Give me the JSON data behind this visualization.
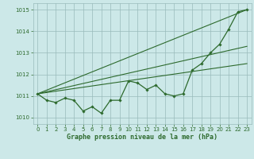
{
  "x": [
    0,
    1,
    2,
    3,
    4,
    5,
    6,
    7,
    8,
    9,
    10,
    11,
    12,
    13,
    14,
    15,
    16,
    17,
    18,
    19,
    20,
    21,
    22,
    23
  ],
  "pressure": [
    1011.1,
    1010.8,
    1010.7,
    1010.9,
    1010.8,
    1010.3,
    1010.5,
    1010.2,
    1010.8,
    1010.8,
    1011.7,
    1011.6,
    1011.3,
    1011.5,
    1011.1,
    1011.0,
    1011.1,
    1012.2,
    1012.5,
    1013.0,
    1013.4,
    1014.1,
    1014.9,
    1015.0
  ],
  "line1_x": [
    0,
    23
  ],
  "line1_y": [
    1011.1,
    1015.0
  ],
  "line2_x": [
    0,
    23
  ],
  "line2_y": [
    1011.1,
    1013.3
  ],
  "line3_x": [
    0,
    23
  ],
  "line3_y": [
    1011.1,
    1012.5
  ],
  "bg_color": "#cce8e8",
  "line_color": "#2d6a2d",
  "grid_color": "#99bbbb",
  "xlabel": "Graphe pression niveau de la mer (hPa)",
  "ylim": [
    1009.7,
    1015.3
  ],
  "xlim": [
    -0.5,
    23.5
  ],
  "yticks": [
    1010,
    1011,
    1012,
    1013,
    1014,
    1015
  ],
  "xticks": [
    0,
    1,
    2,
    3,
    4,
    5,
    6,
    7,
    8,
    9,
    10,
    11,
    12,
    13,
    14,
    15,
    16,
    17,
    18,
    19,
    20,
    21,
    22,
    23
  ]
}
